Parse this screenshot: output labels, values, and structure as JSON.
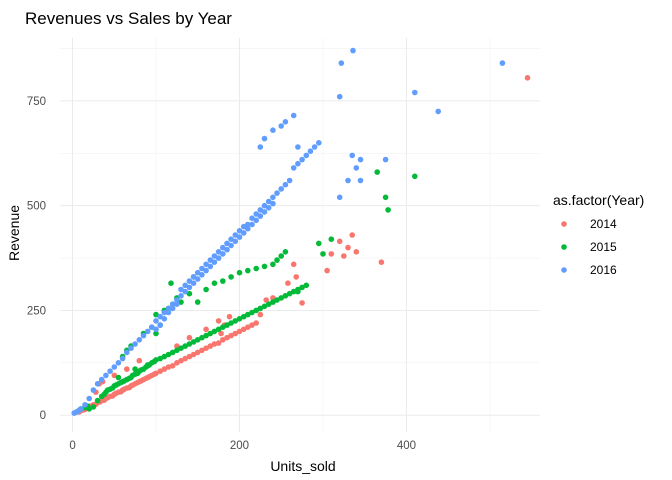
{
  "chart_data": {
    "type": "scatter",
    "title": "Revenues vs Sales by Year",
    "xlabel": "Units_sold",
    "ylabel": "Revenue",
    "xlim": [
      -15,
      560
    ],
    "ylim": [
      -40,
      900
    ],
    "x_ticks": [
      0,
      200,
      400
    ],
    "x_tick_labels": [
      "0",
      "200",
      "400"
    ],
    "y_ticks": [
      0,
      250,
      500,
      750
    ],
    "y_tick_labels": [
      "0",
      "250",
      "500",
      "750"
    ],
    "grid": true,
    "legend_title": "as.factor(Year)",
    "legend_position": "right",
    "series": [
      {
        "name": "2014",
        "color": "#F8766D",
        "points": [
          [
            8,
            8
          ],
          [
            12,
            12
          ],
          [
            15,
            14
          ],
          [
            20,
            18
          ],
          [
            22,
            22
          ],
          [
            25,
            25
          ],
          [
            28,
            26
          ],
          [
            30,
            30
          ],
          [
            33,
            32
          ],
          [
            35,
            35
          ],
          [
            38,
            36
          ],
          [
            40,
            40
          ],
          [
            42,
            42
          ],
          [
            45,
            45
          ],
          [
            48,
            46
          ],
          [
            50,
            50
          ],
          [
            52,
            52
          ],
          [
            55,
            55
          ],
          [
            58,
            56
          ],
          [
            60,
            60
          ],
          [
            62,
            62
          ],
          [
            65,
            65
          ],
          [
            68,
            66
          ],
          [
            70,
            70
          ],
          [
            72,
            72
          ],
          [
            75,
            75
          ],
          [
            78,
            78
          ],
          [
            80,
            80
          ],
          [
            82,
            82
          ],
          [
            85,
            85
          ],
          [
            88,
            88
          ],
          [
            90,
            90
          ],
          [
            92,
            92
          ],
          [
            95,
            95
          ],
          [
            98,
            98
          ],
          [
            100,
            100
          ],
          [
            105,
            105
          ],
          [
            110,
            110
          ],
          [
            115,
            115
          ],
          [
            120,
            118
          ],
          [
            125,
            125
          ],
          [
            130,
            130
          ],
          [
            135,
            135
          ],
          [
            140,
            140
          ],
          [
            145,
            145
          ],
          [
            150,
            150
          ],
          [
            155,
            155
          ],
          [
            160,
            160
          ],
          [
            165,
            165
          ],
          [
            170,
            170
          ],
          [
            175,
            172
          ],
          [
            180,
            180
          ],
          [
            185,
            185
          ],
          [
            190,
            190
          ],
          [
            195,
            195
          ],
          [
            200,
            200
          ],
          [
            205,
            205
          ],
          [
            210,
            210
          ],
          [
            215,
            215
          ],
          [
            220,
            220
          ],
          [
            28,
            55
          ],
          [
            32,
            75
          ],
          [
            36,
            80
          ],
          [
            50,
            95
          ],
          [
            65,
            110
          ],
          [
            80,
            130
          ],
          [
            125,
            165
          ],
          [
            140,
            185
          ],
          [
            160,
            205
          ],
          [
            175,
            225
          ],
          [
            178,
            195
          ],
          [
            182,
            215
          ],
          [
            188,
            235
          ],
          [
            225,
            240
          ],
          [
            232,
            275
          ],
          [
            240,
            280
          ],
          [
            258,
            315
          ],
          [
            265,
            360
          ],
          [
            268,
            330
          ],
          [
            275,
            268
          ],
          [
            305,
            345
          ],
          [
            310,
            385
          ],
          [
            320,
            415
          ],
          [
            325,
            380
          ],
          [
            330,
            400
          ],
          [
            335,
            430
          ],
          [
            340,
            390
          ],
          [
            370,
            365
          ],
          [
            545,
            805
          ]
        ]
      },
      {
        "name": "2015",
        "color": "#00BA38",
        "points": [
          [
            5,
            8
          ],
          [
            10,
            15
          ],
          [
            15,
            18
          ],
          [
            18,
            22
          ],
          [
            20,
            15
          ],
          [
            25,
            20
          ],
          [
            30,
            35
          ],
          [
            35,
            45
          ],
          [
            38,
            50
          ],
          [
            40,
            55
          ],
          [
            42,
            60
          ],
          [
            45,
            62
          ],
          [
            48,
            65
          ],
          [
            50,
            70
          ],
          [
            52,
            72
          ],
          [
            55,
            75
          ],
          [
            58,
            78
          ],
          [
            60,
            80
          ],
          [
            62,
            82
          ],
          [
            65,
            85
          ],
          [
            68,
            88
          ],
          [
            70,
            90
          ],
          [
            72,
            95
          ],
          [
            75,
            98
          ],
          [
            78,
            100
          ],
          [
            80,
            105
          ],
          [
            82,
            108
          ],
          [
            85,
            110
          ],
          [
            88,
            115
          ],
          [
            90,
            118
          ],
          [
            92,
            120
          ],
          [
            95,
            125
          ],
          [
            98,
            128
          ],
          [
            100,
            132
          ],
          [
            105,
            135
          ],
          [
            110,
            140
          ],
          [
            115,
            145
          ],
          [
            120,
            150
          ],
          [
            125,
            155
          ],
          [
            130,
            160
          ],
          [
            135,
            165
          ],
          [
            140,
            170
          ],
          [
            145,
            175
          ],
          [
            150,
            180
          ],
          [
            155,
            185
          ],
          [
            160,
            190
          ],
          [
            165,
            195
          ],
          [
            170,
            200
          ],
          [
            175,
            205
          ],
          [
            180,
            210
          ],
          [
            185,
            215
          ],
          [
            190,
            220
          ],
          [
            195,
            225
          ],
          [
            200,
            230
          ],
          [
            205,
            235
          ],
          [
            210,
            240
          ],
          [
            215,
            245
          ],
          [
            220,
            250
          ],
          [
            225,
            255
          ],
          [
            230,
            260
          ],
          [
            235,
            265
          ],
          [
            240,
            270
          ],
          [
            245,
            275
          ],
          [
            250,
            280
          ],
          [
            255,
            285
          ],
          [
            260,
            290
          ],
          [
            265,
            295
          ],
          [
            270,
            300
          ],
          [
            275,
            305
          ],
          [
            280,
            310
          ],
          [
            60,
            140
          ],
          [
            65,
            155
          ],
          [
            70,
            165
          ],
          [
            85,
            195
          ],
          [
            95,
            210
          ],
          [
            100,
            240
          ],
          [
            105,
            215
          ],
          [
            110,
            250
          ],
          [
            115,
            255
          ],
          [
            120,
            265
          ],
          [
            125,
            280
          ],
          [
            130,
            270
          ],
          [
            140,
            290
          ],
          [
            150,
            270
          ],
          [
            160,
            300
          ],
          [
            170,
            315
          ],
          [
            180,
            320
          ],
          [
            190,
            330
          ],
          [
            200,
            340
          ],
          [
            210,
            345
          ],
          [
            220,
            350
          ],
          [
            230,
            355
          ],
          [
            240,
            360
          ],
          [
            245,
            370
          ],
          [
            250,
            380
          ],
          [
            255,
            390
          ],
          [
            118,
            315
          ],
          [
            145,
            330
          ],
          [
            295,
            410
          ],
          [
            300,
            385
          ],
          [
            310,
            420
          ],
          [
            365,
            580
          ],
          [
            375,
            520
          ],
          [
            378,
            490
          ],
          [
            410,
            570
          ],
          [
            270,
            295
          ],
          [
            100,
            195
          ],
          [
            90,
            120
          ],
          [
            75,
            110
          ],
          [
            55,
            90
          ]
        ]
      },
      {
        "name": "2016",
        "color": "#619CFF",
        "points": [
          [
            2,
            5
          ],
          [
            5,
            8
          ],
          [
            8,
            12
          ],
          [
            10,
            15
          ],
          [
            15,
            25
          ],
          [
            20,
            40
          ],
          [
            25,
            60
          ],
          [
            30,
            75
          ],
          [
            35,
            85
          ],
          [
            40,
            95
          ],
          [
            45,
            105
          ],
          [
            50,
            115
          ],
          [
            55,
            125
          ],
          [
            60,
            135
          ],
          [
            65,
            150
          ],
          [
            70,
            160
          ],
          [
            75,
            170
          ],
          [
            80,
            180
          ],
          [
            85,
            190
          ],
          [
            90,
            200
          ],
          [
            95,
            210
          ],
          [
            100,
            225
          ],
          [
            105,
            235
          ],
          [
            110,
            245
          ],
          [
            115,
            255
          ],
          [
            120,
            265
          ],
          [
            125,
            275
          ],
          [
            130,
            285
          ],
          [
            135,
            295
          ],
          [
            140,
            305
          ],
          [
            145,
            315
          ],
          [
            150,
            325
          ],
          [
            155,
            335
          ],
          [
            160,
            345
          ],
          [
            165,
            355
          ],
          [
            170,
            365
          ],
          [
            175,
            375
          ],
          [
            180,
            385
          ],
          [
            185,
            395
          ],
          [
            190,
            405
          ],
          [
            195,
            415
          ],
          [
            200,
            425
          ],
          [
            205,
            435
          ],
          [
            210,
            445
          ],
          [
            215,
            455
          ],
          [
            220,
            465
          ],
          [
            225,
            475
          ],
          [
            230,
            485
          ],
          [
            235,
            495
          ],
          [
            240,
            505
          ],
          [
            100,
            205
          ],
          [
            105,
            215
          ],
          [
            110,
            230
          ],
          [
            115,
            245
          ],
          [
            120,
            255
          ],
          [
            125,
            265
          ],
          [
            130,
            300
          ],
          [
            135,
            310
          ],
          [
            140,
            320
          ],
          [
            145,
            330
          ],
          [
            150,
            340
          ],
          [
            155,
            350
          ],
          [
            160,
            360
          ],
          [
            165,
            370
          ],
          [
            170,
            380
          ],
          [
            175,
            390
          ],
          [
            180,
            400
          ],
          [
            185,
            410
          ],
          [
            190,
            420
          ],
          [
            195,
            430
          ],
          [
            200,
            440
          ],
          [
            205,
            450
          ],
          [
            210,
            455
          ],
          [
            215,
            470
          ],
          [
            220,
            480
          ],
          [
            225,
            490
          ],
          [
            230,
            500
          ],
          [
            235,
            510
          ],
          [
            240,
            520
          ],
          [
            245,
            530
          ],
          [
            250,
            540
          ],
          [
            255,
            550
          ],
          [
            260,
            560
          ],
          [
            265,
            590
          ],
          [
            270,
            600
          ],
          [
            275,
            610
          ],
          [
            280,
            620
          ],
          [
            285,
            630
          ],
          [
            290,
            640
          ],
          [
            295,
            650
          ],
          [
            225,
            640
          ],
          [
            230,
            660
          ],
          [
            240,
            680
          ],
          [
            250,
            690
          ],
          [
            255,
            700
          ],
          [
            265,
            715
          ],
          [
            270,
            640
          ],
          [
            320,
            520
          ],
          [
            330,
            560
          ],
          [
            345,
            560
          ],
          [
            335,
            620
          ],
          [
            340,
            590
          ],
          [
            345,
            610
          ],
          [
            375,
            610
          ],
          [
            320,
            760
          ],
          [
            322,
            840
          ],
          [
            336,
            870
          ],
          [
            410,
            770
          ],
          [
            438,
            725
          ],
          [
            515,
            840
          ]
        ]
      }
    ]
  }
}
